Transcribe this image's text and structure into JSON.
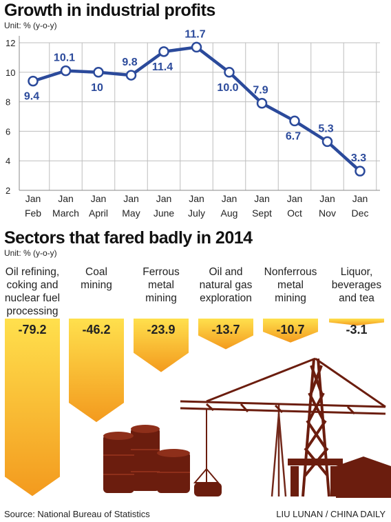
{
  "chart_data": [
    {
      "type": "line",
      "title": "Growth in industrial profits",
      "unit": "Unit: % (y-o-y)",
      "categories": [
        [
          "Jan",
          "Feb"
        ],
        [
          "Jan",
          "March"
        ],
        [
          "Jan",
          "April"
        ],
        [
          "Jan",
          "May"
        ],
        [
          "Jan",
          "June"
        ],
        [
          "Jan",
          "July"
        ],
        [
          "Jan",
          "Aug"
        ],
        [
          "Jan",
          "Sept"
        ],
        [
          "Jan",
          "Oct"
        ],
        [
          "Jan",
          "Nov"
        ],
        [
          "Jan",
          "Dec"
        ]
      ],
      "values": [
        9.4,
        10.1,
        10,
        9.8,
        11.4,
        11.7,
        10.0,
        7.9,
        6.7,
        5.3,
        3.3
      ],
      "value_labels": [
        "9.4",
        "10.1",
        "10",
        "9.8",
        "11.4",
        "11.7",
        "10.0",
        "7.9",
        "6.7",
        "5.3",
        "3.3"
      ],
      "yticks": [
        2,
        4,
        6,
        8,
        10,
        12
      ],
      "ylim": [
        2,
        12
      ],
      "grid": true,
      "line_color": "#2b4a9b"
    },
    {
      "type": "bar",
      "title": "Sectors that fared badly in 2014",
      "unit": "Unit: % (y-o-y)",
      "categories": [
        "Oil refining, coking and nuclear fuel processing",
        "Coal mining",
        "Ferrous metal mining",
        "Oil and natural gas exploration",
        "Nonferrous metal mining",
        "Liquor, beverages and tea"
      ],
      "category_lines": [
        [
          "Oil refining,",
          "coking and",
          "nuclear fuel",
          "processing"
        ],
        [
          "Coal",
          "mining"
        ],
        [
          "Ferrous",
          "metal",
          "mining"
        ],
        [
          "Oil and",
          "natural gas",
          "exploration"
        ],
        [
          "Nonferrous",
          "metal",
          "mining"
        ],
        [
          "Liquor,",
          "beverages",
          "and tea"
        ]
      ],
      "values": [
        -79.2,
        -46.2,
        -23.9,
        -13.7,
        -10.7,
        -3.1
      ],
      "value_labels": [
        "-79.2",
        "-46.2",
        "-23.9",
        "-13.7",
        "-10.7",
        "-3.1"
      ],
      "bar_colors": [
        "#f6a623",
        "#ffd84a"
      ]
    }
  ],
  "footer": {
    "source": "Source: National Bureau of Statistics",
    "credit": "LIU LUNAN / CHINA DAILY"
  },
  "colors": {
    "silhouette": "#6b1d0e",
    "grid": "#bdbdbd"
  }
}
